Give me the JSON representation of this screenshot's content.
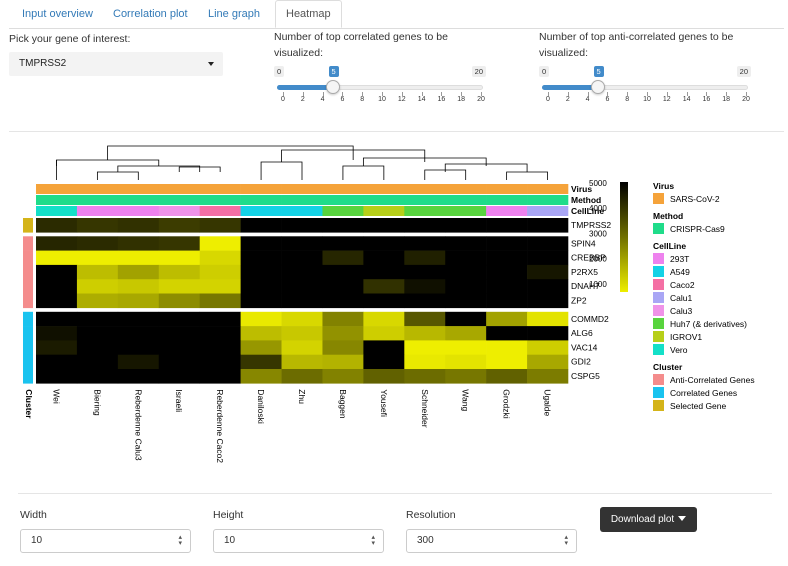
{
  "tabs": [
    {
      "label": "Input overview",
      "active": false
    },
    {
      "label": "Correlation plot",
      "active": false
    },
    {
      "label": "Line graph",
      "active": false
    },
    {
      "label": "Heatmap",
      "active": true
    }
  ],
  "gene_select": {
    "label": "Pick your gene of interest:",
    "value": "TMPRSS2"
  },
  "slider_correlated": {
    "label": "Number of top correlated genes to be visualized:",
    "min": "0",
    "max": "20",
    "value": "5",
    "ticks": [
      "0",
      "2",
      "4",
      "6",
      "8",
      "10",
      "12",
      "14",
      "16",
      "18",
      "20"
    ]
  },
  "slider_anticorrelated": {
    "label": "Number of top anti-correlated genes to be visualized:",
    "min": "0",
    "max": "20",
    "value": "5",
    "ticks": [
      "0",
      "2",
      "4",
      "6",
      "8",
      "10",
      "12",
      "14",
      "16",
      "18",
      "20"
    ]
  },
  "chart_data": {
    "type": "heatmap",
    "columns": [
      "Wei",
      "Biering",
      "Reberdenne Calu3",
      "Israeli",
      "Reberdenne Caco2",
      "Daniloski",
      "Zhu",
      "Baggen",
      "Yousefi",
      "Schneider",
      "Wang",
      "Grodzki",
      "Ugalde"
    ],
    "rows": [
      "TMPRSS2",
      "SPIN4",
      "CREBBP",
      "P2RX5",
      "DNAH7",
      "ZP2",
      "COMMD2",
      "ALG6",
      "VAC14",
      "GDI2",
      "CSPG5"
    ],
    "row_cluster": [
      "Selected Gene",
      "Anti-Correlated Genes",
      "Anti-Correlated Genes",
      "Anti-Correlated Genes",
      "Anti-Correlated Genes",
      "Anti-Correlated Genes",
      "Correlated Genes",
      "Correlated Genes",
      "Correlated Genes",
      "Correlated Genes",
      "Correlated Genes"
    ],
    "values": [
      [
        4200,
        4000,
        4100,
        3900,
        4000,
        5000,
        5000,
        5000,
        5000,
        5000,
        5000,
        5000,
        5000
      ],
      [
        4300,
        4200,
        4100,
        4000,
        300,
        5000,
        5000,
        5000,
        5000,
        5000,
        5000,
        5000,
        5000
      ],
      [
        600,
        500,
        600,
        500,
        1000,
        5000,
        5000,
        4300,
        5000,
        4400,
        5000,
        5000,
        5000
      ],
      [
        5000,
        1500,
        2000,
        1500,
        1200,
        5000,
        5000,
        5000,
        5000,
        5000,
        5000,
        5000,
        4600
      ],
      [
        5000,
        1200,
        1300,
        1100,
        1100,
        5000,
        5000,
        5000,
        4100,
        4700,
        5000,
        5000,
        5000
      ],
      [
        5000,
        1800,
        1900,
        2400,
        2800,
        5000,
        5000,
        5000,
        5000,
        5000,
        5000,
        5000,
        5000
      ],
      [
        5000,
        5000,
        5000,
        5000,
        5000,
        700,
        1000,
        2600,
        1000,
        3400,
        5000,
        2000,
        800
      ],
      [
        4700,
        5000,
        5000,
        5000,
        5000,
        1500,
        1300,
        2300,
        1200,
        1600,
        1900,
        5000,
        5000
      ],
      [
        4500,
        5000,
        5000,
        5000,
        5000,
        2200,
        1100,
        2500,
        5000,
        600,
        500,
        600,
        1200
      ],
      [
        5000,
        5000,
        4600,
        5000,
        5000,
        4000,
        1600,
        1700,
        5000,
        700,
        800,
        600,
        1900
      ],
      [
        5000,
        5000,
        5000,
        5000,
        5000,
        2500,
        3000,
        2600,
        3200,
        3000,
        2800,
        3200,
        2700
      ]
    ],
    "col_virus": [
      "SARS-CoV-2",
      "SARS-CoV-2",
      "SARS-CoV-2",
      "SARS-CoV-2",
      "SARS-CoV-2",
      "SARS-CoV-2",
      "SARS-CoV-2",
      "SARS-CoV-2",
      "SARS-CoV-2",
      "SARS-CoV-2",
      "SARS-CoV-2",
      "SARS-CoV-2",
      "SARS-CoV-2"
    ],
    "col_method": [
      "CRISPR-Cas9",
      "CRISPR-Cas9",
      "CRISPR-Cas9",
      "CRISPR-Cas9",
      "CRISPR-Cas9",
      "CRISPR-Cas9",
      "CRISPR-Cas9",
      "CRISPR-Cas9",
      "CRISPR-Cas9",
      "CRISPR-Cas9",
      "CRISPR-Cas9",
      "CRISPR-Cas9",
      "CRISPR-Cas9"
    ],
    "col_cellline": [
      "Vero",
      "293T",
      "293T",
      "Calu3",
      "Caco2",
      "A549",
      "A549",
      "Huh7 (& derivatives)",
      "IGROV1",
      "Huh7 (& derivatives)",
      "Huh7 (& derivatives)",
      "293T",
      "Calu1"
    ],
    "annotation_titles": [
      "Virus",
      "Method",
      "CellLine",
      "Cluster"
    ],
    "color_scale": {
      "min": 0,
      "max": 5000,
      "ticks": [
        "5000",
        "4000",
        "3000",
        "2000",
        "1000"
      ]
    },
    "legend": {
      "Virus": [
        {
          "label": "SARS-CoV-2",
          "color": "#f5a33a"
        }
      ],
      "Method": [
        {
          "label": "CRISPR-Cas9",
          "color": "#1fdc8a"
        }
      ],
      "CellLine": [
        {
          "label": "293T",
          "color": "#ee82ee"
        },
        {
          "label": "A549",
          "color": "#14d2e6"
        },
        {
          "label": "Caco2",
          "color": "#f46fa4"
        },
        {
          "label": "Calu1",
          "color": "#a9a6f5"
        },
        {
          "label": "Calu3",
          "color": "#f093e8"
        },
        {
          "label": "Huh7 (& derivatives)",
          "color": "#58d43e"
        },
        {
          "label": "IGROV1",
          "color": "#b7cf19"
        },
        {
          "label": "Vero",
          "color": "#14e0c8"
        }
      ],
      "Cluster": [
        {
          "label": "Anti-Correlated Genes",
          "color": "#f48c8c"
        },
        {
          "label": "Correlated Genes",
          "color": "#19c3ef"
        },
        {
          "label": "Selected Gene",
          "color": "#d4b419"
        }
      ]
    }
  },
  "width_field": {
    "label": "Width",
    "value": "10"
  },
  "height_field": {
    "label": "Height",
    "value": "10"
  },
  "resolution_field": {
    "label": "Resolution",
    "value": "300"
  },
  "download_button": {
    "label": "Download plot"
  }
}
